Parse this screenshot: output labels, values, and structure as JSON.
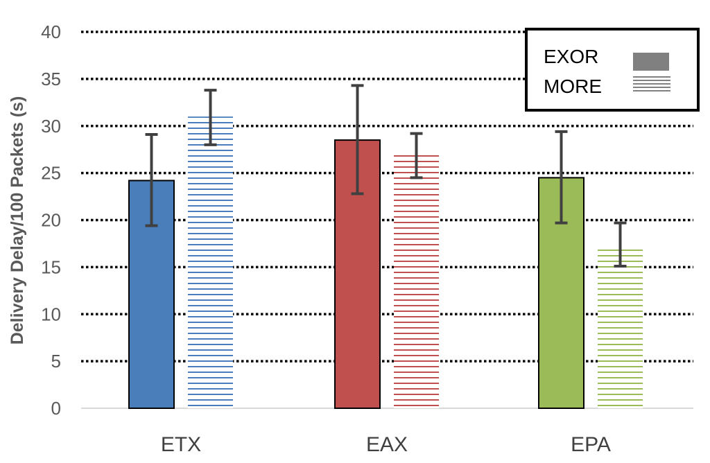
{
  "chart_data": {
    "type": "bar",
    "title": "",
    "xlabel": "",
    "ylabel": "Delivery Delay/100 Packets (s)",
    "ylim": [
      0,
      40
    ],
    "yticks": [
      0,
      5,
      10,
      15,
      20,
      25,
      30,
      35,
      40
    ],
    "grid": "dotted horizontal",
    "legend_position": "top-right",
    "categories": [
      "ETX",
      "EAX",
      "EPA"
    ],
    "category_colors": [
      "#4a7ebb",
      "#c0504d",
      "#9bbb59"
    ],
    "series": [
      {
        "name": "EXOR",
        "style": "solid",
        "values": [
          24.2,
          28.5,
          24.5
        ],
        "error_low": [
          19.4,
          22.8,
          19.7
        ],
        "error_high": [
          29.1,
          34.3,
          29.4
        ]
      },
      {
        "name": "MORE",
        "style": "horizontal-stripes",
        "values": [
          31.0,
          27.0,
          17.2
        ],
        "error_low": [
          28.0,
          24.5,
          15.1
        ],
        "error_high": [
          33.8,
          29.2,
          19.7
        ]
      }
    ],
    "legend_swatch_color": "#808080"
  }
}
